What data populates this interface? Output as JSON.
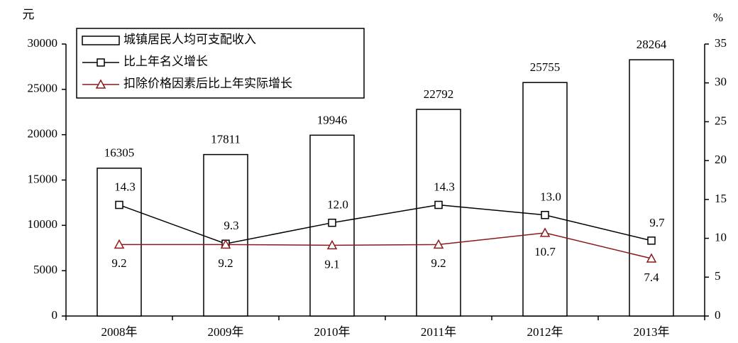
{
  "chart_data": {
    "type": "bar",
    "categories": [
      "2008年",
      "2009年",
      "2010年",
      "2011年",
      "2012年",
      "2013年"
    ],
    "y_label": "元",
    "y2_label": "%",
    "ylim": [
      0,
      30000
    ],
    "yticks": [
      0,
      5000,
      10000,
      15000,
      20000,
      25000,
      30000
    ],
    "y2lim": [
      0,
      35
    ],
    "y2ticks": [
      0,
      5,
      10,
      15,
      20,
      25,
      30,
      35
    ],
    "legend": "top-left",
    "series": [
      {
        "name": "城镇居民人均可支配收入",
        "type": "bar",
        "color": "#ffffff",
        "values": [
          16305,
          17811,
          19946,
          22792,
          25755,
          28264
        ]
      },
      {
        "name": "比上年名义增长",
        "type": "line",
        "axis": "y2",
        "marker": "square",
        "color": "#000000",
        "values": [
          14.3,
          9.3,
          12.0,
          14.3,
          13.0,
          9.7
        ],
        "value_labels": [
          "14.3",
          "9.3",
          "12.0",
          "14.3",
          "13.0",
          "9.7"
        ]
      },
      {
        "name": "扣除价格因素后比上年实际增长",
        "type": "line",
        "axis": "y2",
        "marker": "triangle",
        "color": "#8b1a1a",
        "values": [
          9.2,
          9.2,
          9.1,
          9.2,
          10.7,
          7.4
        ],
        "value_labels": [
          "9.2",
          "9.2",
          "9.1",
          "9.2",
          "10.7",
          "7.4"
        ]
      }
    ]
  }
}
